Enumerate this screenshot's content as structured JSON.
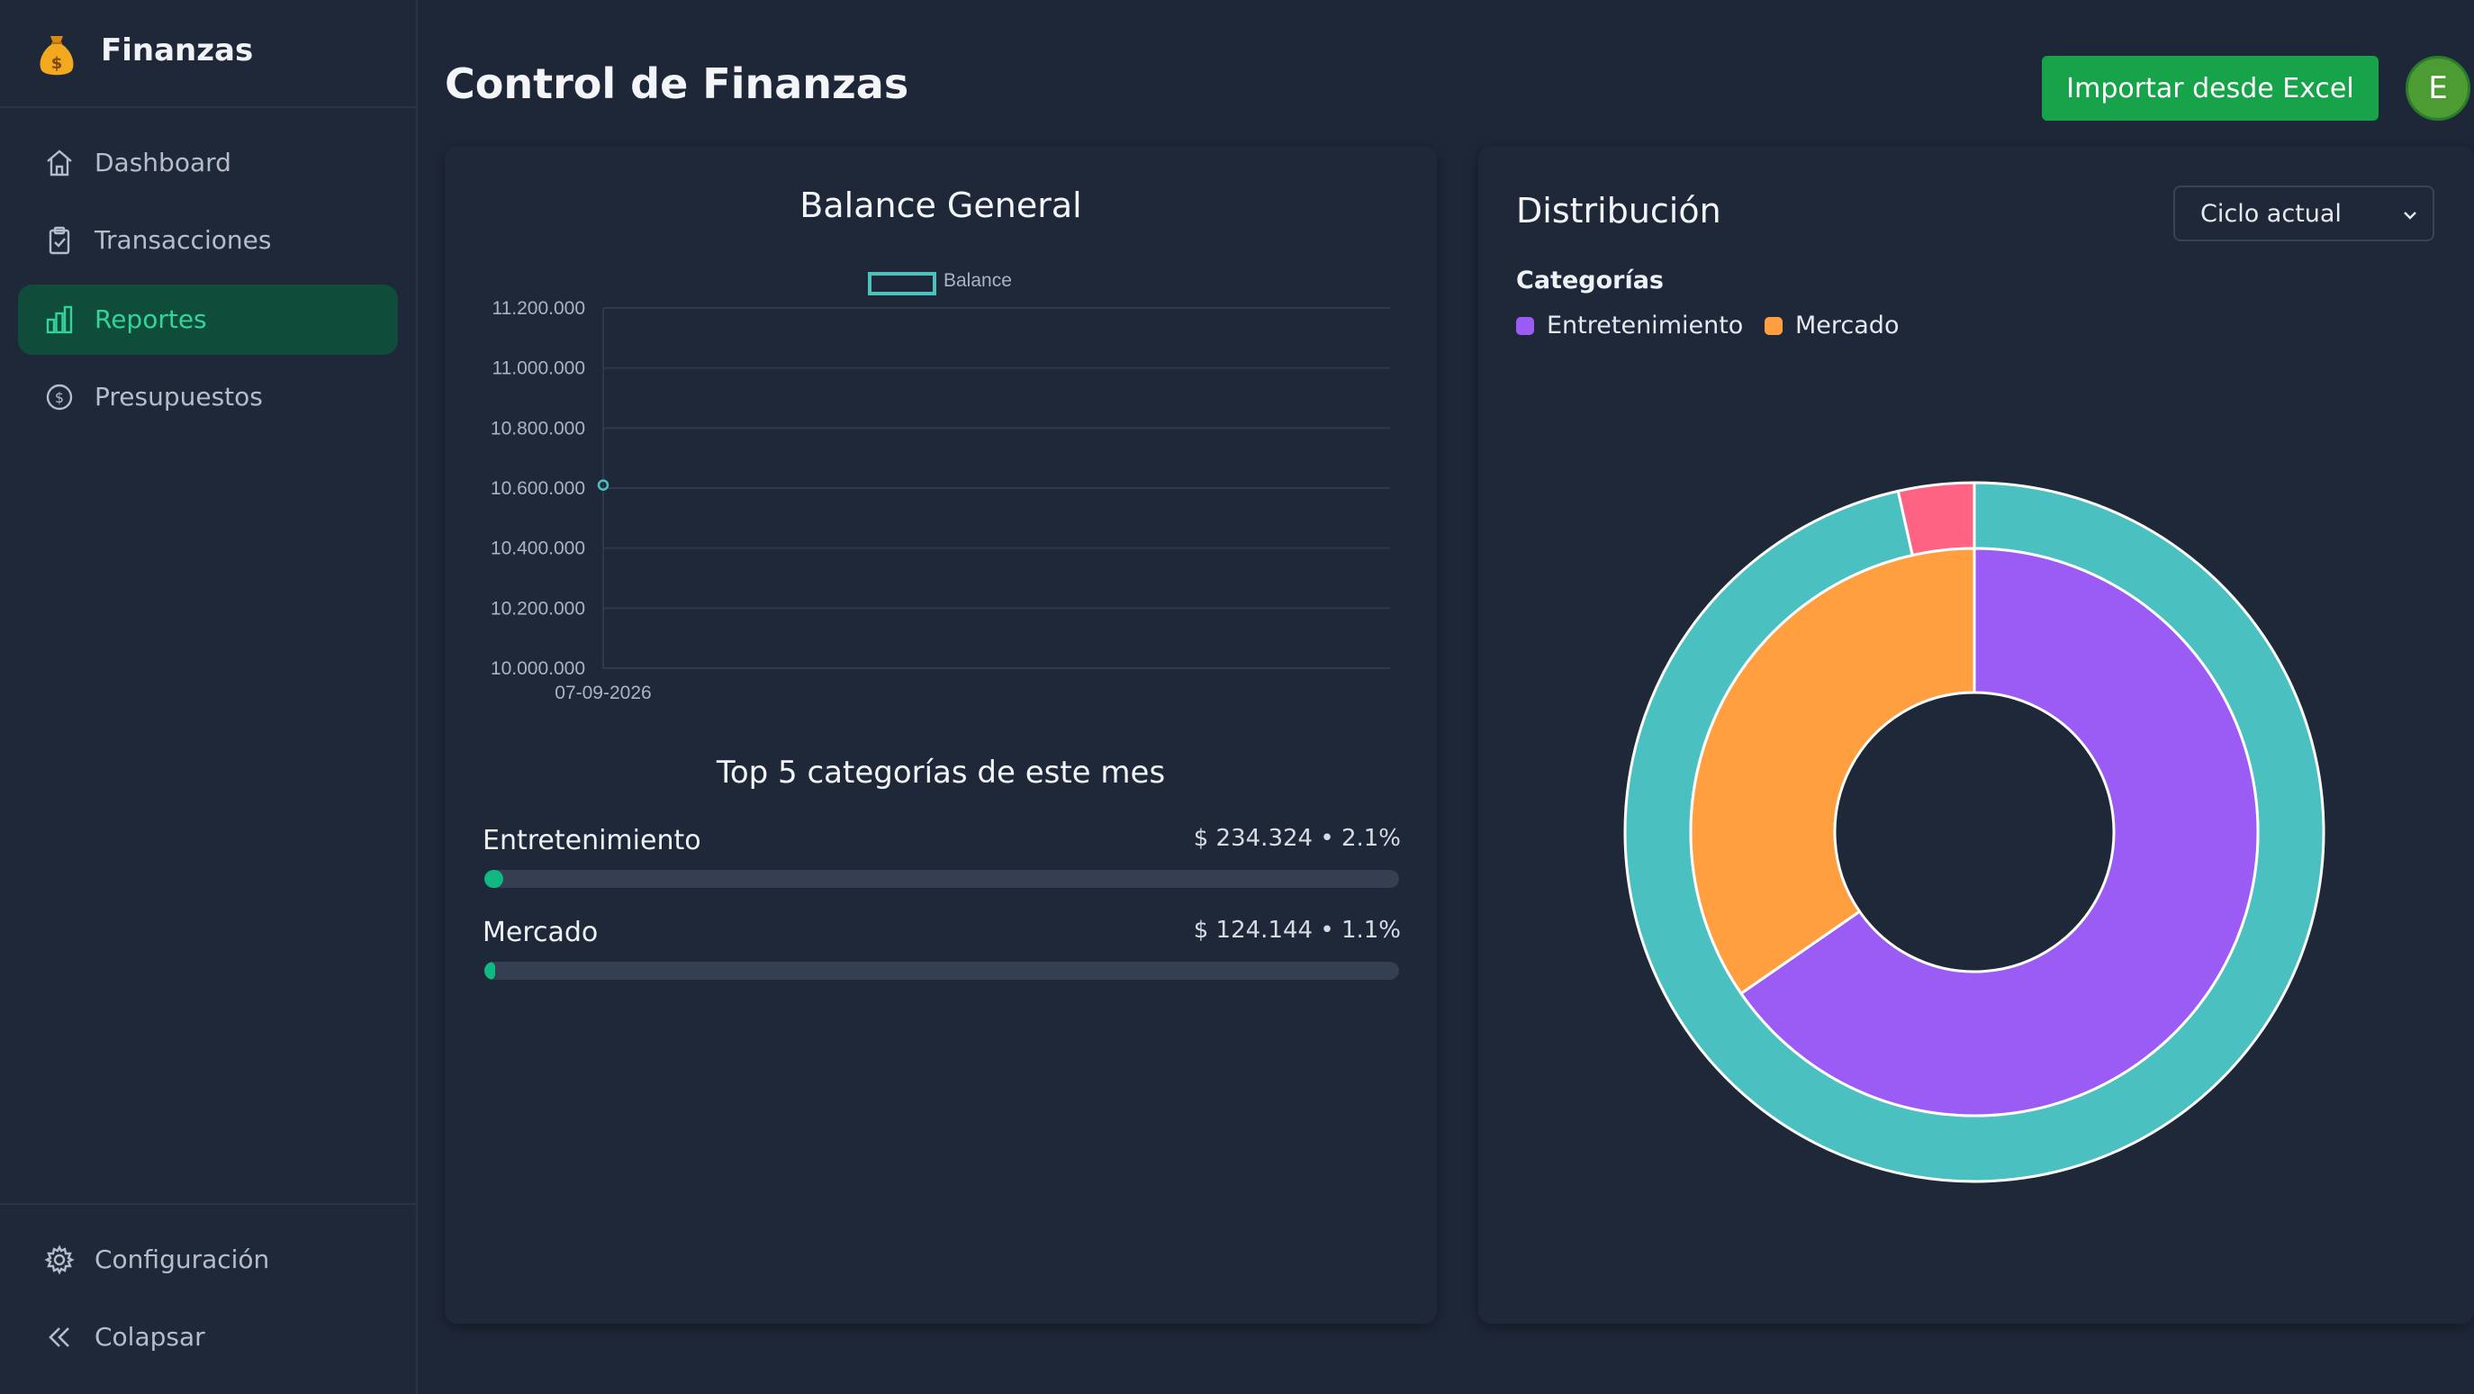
{
  "app": {
    "name": "Finanzas"
  },
  "sidebar": {
    "items": [
      {
        "label": "Dashboard",
        "icon": "home-icon"
      },
      {
        "label": "Transacciones",
        "icon": "clipboard-icon"
      },
      {
        "label": "Reportes",
        "icon": "bar-chart-icon",
        "active": true
      },
      {
        "label": "Presupuestos",
        "icon": "dollar-circle-icon"
      }
    ],
    "bottom": [
      {
        "label": "Configuración",
        "icon": "gear-icon"
      },
      {
        "label": "Colapsar",
        "icon": "double-chevron-left-icon"
      }
    ]
  },
  "header": {
    "title": "Control de Finanzas",
    "import_label": "Importar desde Excel",
    "avatar_initial": "E"
  },
  "balance_card": {
    "title": "Balance General",
    "legend": "Balance"
  },
  "top5": {
    "title": "Top 5 categorías de este mes",
    "items": [
      {
        "name": "Entretenimiento",
        "value": "$ 234.324 • 2.1%",
        "percent": 2.1
      },
      {
        "name": "Mercado",
        "value": "$ 124.144 • 1.1%",
        "percent": 1.1
      }
    ]
  },
  "distribution": {
    "title": "Distribución",
    "cycle_select": "Ciclo actual",
    "categories_label": "Categorías",
    "legend": [
      {
        "name": "Entretenimiento",
        "color": "#9b5cf6"
      },
      {
        "name": "Mercado",
        "color": "#ff9f40"
      }
    ]
  },
  "colors": {
    "accent_green": "#16a34a",
    "active_nav_bg": "#0f4d3a",
    "active_nav_text": "#34d399",
    "teal": "#4bc0c0",
    "purple": "#9b5cf6",
    "orange": "#ff9f40",
    "pink": "#ff6384"
  },
  "chart_data": [
    {
      "type": "line",
      "title": "Balance General",
      "series": [
        {
          "name": "Balance",
          "x": [
            "07-09-2026"
          ],
          "values": [
            10610000
          ],
          "color": "#4bc0c0"
        }
      ],
      "x_ticks": [
        "07-09-2026"
      ],
      "y_ticks": [
        "11.200.000",
        "11.000.000",
        "10.800.000",
        "10.600.000",
        "10.400.000",
        "10.200.000",
        "10.000.000"
      ],
      "ylim": [
        10000000,
        11200000
      ],
      "grid": true,
      "legend": "top-center"
    },
    {
      "type": "pie",
      "title": "Distribución",
      "rings": [
        {
          "name": "outer",
          "slices": [
            {
              "value": 96.5,
              "color": "#4bc0c0"
            },
            {
              "value": 3.5,
              "color": "#ff6384"
            }
          ]
        },
        {
          "name": "inner",
          "slices": [
            {
              "label": "Entretenimiento",
              "value": 234324,
              "color": "#9b5cf6"
            },
            {
              "label": "Mercado",
              "value": 124144,
              "color": "#ff9f40"
            }
          ]
        }
      ],
      "legend": "top-left"
    }
  ]
}
